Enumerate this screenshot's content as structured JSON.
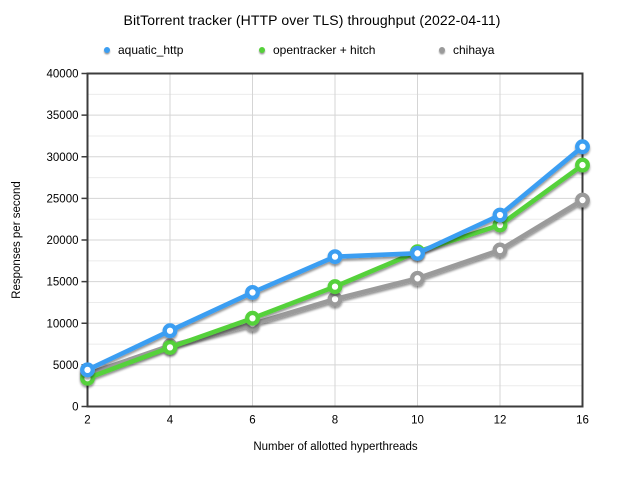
{
  "title": "BitTorrent tracker (HTTP over TLS) throughput (2022-04-11)",
  "chart_data": {
    "type": "line",
    "categories": [
      "2",
      "4",
      "6",
      "8",
      "10",
      "12",
      "16"
    ],
    "series": [
      {
        "name": "aquatic_http",
        "color": "#3b9ef2",
        "values": [
          4400,
          9100,
          13700,
          18000,
          18400,
          23000,
          31200
        ]
      },
      {
        "name": "opentracker + hitch",
        "color": "#55d13a",
        "values": [
          3400,
          7100,
          10600,
          14400,
          18600,
          21800,
          29000
        ]
      },
      {
        "name": "chihaya",
        "color": "#9a9a9a",
        "values": [
          3900,
          7300,
          9900,
          12900,
          15400,
          18800,
          24800
        ]
      }
    ],
    "title": "BitTorrent tracker (HTTP over TLS) throughput (2022-04-11)",
    "xlabel": "Number of allotted hyperthreads",
    "ylabel": "Responses per second",
    "ylim": [
      0,
      40000
    ],
    "ytick_major": 5000,
    "ytick_minor": 2500,
    "ytick_labels": [
      "0",
      "5000",
      "10000",
      "15000",
      "20000",
      "25000",
      "30000",
      "35000",
      "40000"
    ],
    "grid": true,
    "legend_position": "top",
    "marker": "donut-circle"
  }
}
